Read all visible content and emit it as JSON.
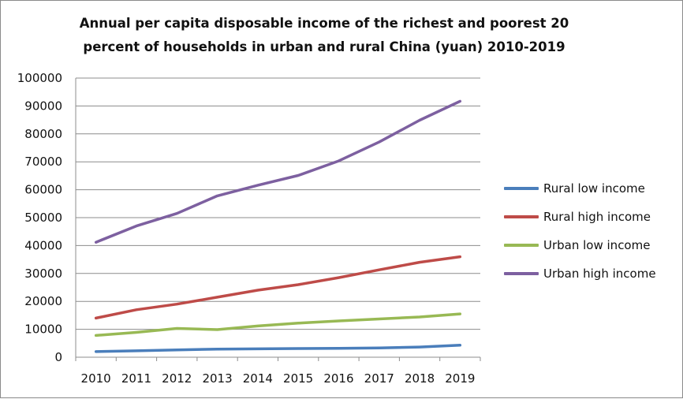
{
  "chart_data": {
    "type": "line",
    "title_line1": "Annual per capita disposable income of the richest and poorest 20",
    "title_line2": "percent of households in urban and rural China (yuan) 2010-2019",
    "x": [
      "2010",
      "2011",
      "2012",
      "2013",
      "2014",
      "2015",
      "2016",
      "2017",
      "2018",
      "2019"
    ],
    "ylim": [
      0,
      100000
    ],
    "yticks": [
      0,
      10000,
      20000,
      30000,
      40000,
      50000,
      60000,
      70000,
      80000,
      90000,
      100000
    ],
    "ytick_labels": [
      "0",
      "10000",
      "20000",
      "30000",
      "40000",
      "50000",
      "60000",
      "70000",
      "80000",
      "90000",
      "100000"
    ],
    "grid": "horizontal",
    "legend_position": "right",
    "series": [
      {
        "name": "Rural low income",
        "color": "#4a7ebb",
        "values": [
          2000,
          2300,
          2600,
          2900,
          3000,
          3100,
          3200,
          3300,
          3650,
          4300
        ]
      },
      {
        "name": "Rural high income",
        "color": "#be4b48",
        "values": [
          14000,
          17000,
          19000,
          21500,
          24000,
          26000,
          28500,
          31300,
          34000,
          36000
        ]
      },
      {
        "name": "Urban low income",
        "color": "#98b954",
        "values": [
          7800,
          8900,
          10300,
          9900,
          11200,
          12200,
          13000,
          13700,
          14400,
          15500
        ]
      },
      {
        "name": "Urban high income",
        "color": "#7d60a0",
        "values": [
          41200,
          47000,
          51500,
          57800,
          61600,
          65100,
          70300,
          77100,
          84900,
          91700
        ]
      }
    ]
  }
}
